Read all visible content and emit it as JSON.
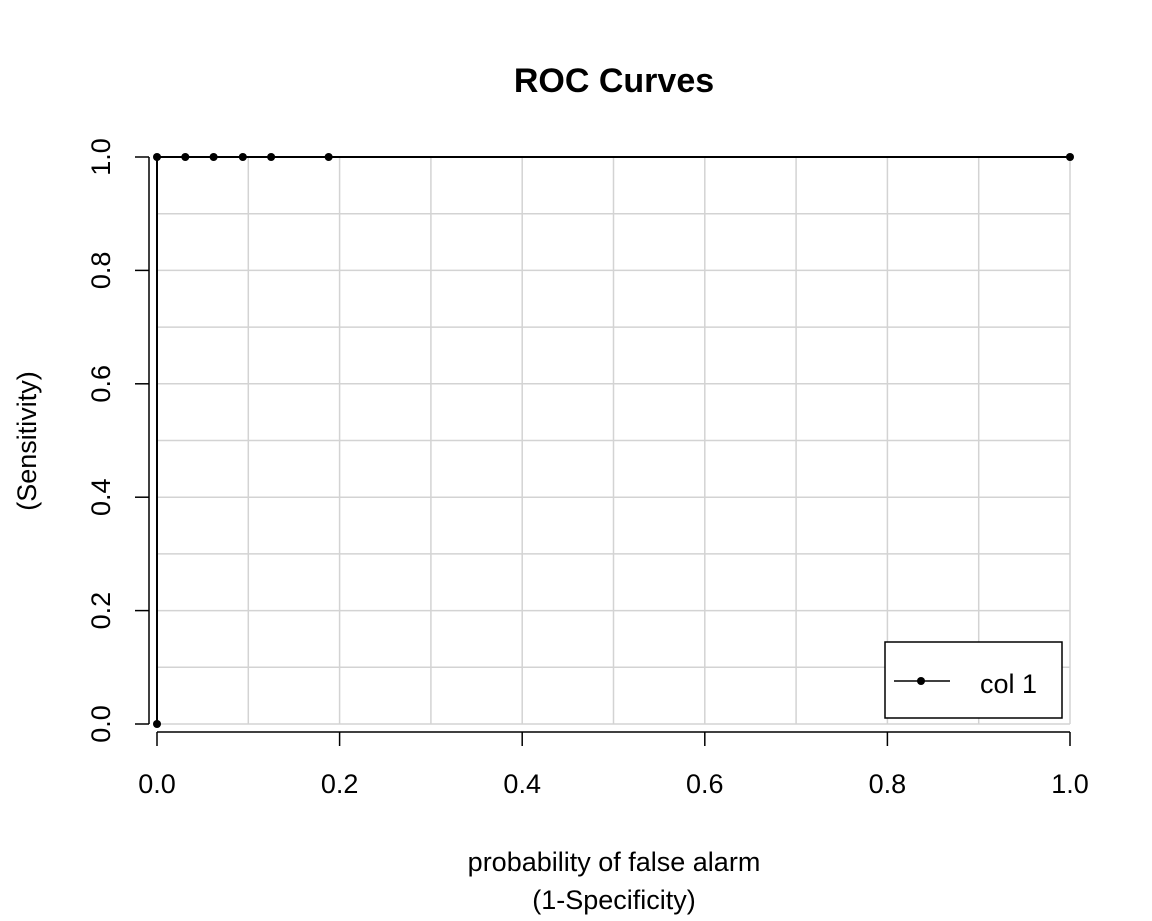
{
  "chart_data": {
    "type": "line",
    "title": "ROC Curves",
    "xlabel": [
      "probability of false alarm",
      "(1-Specificity)"
    ],
    "ylabel": [
      "(Sensitivity)"
    ],
    "xlim": [
      0,
      1
    ],
    "ylim": [
      0,
      1
    ],
    "xticks": [
      0.0,
      0.2,
      0.4,
      0.6,
      0.8,
      1.0
    ],
    "yticks": [
      0.0,
      0.2,
      0.4,
      0.6,
      0.8,
      1.0
    ],
    "xtick_labels": [
      "0.0",
      "0.2",
      "0.4",
      "0.6",
      "0.8",
      "1.0"
    ],
    "ytick_labels": [
      "0.0",
      "0.2",
      "0.4",
      "0.6",
      "0.8",
      "1.0"
    ],
    "grid": true,
    "legend_position": "bottom-right",
    "series": [
      {
        "name": "col 1",
        "color": "#000000",
        "x": [
          0.0,
          0.0,
          0.031,
          0.062,
          0.094,
          0.125,
          0.188,
          1.0
        ],
        "y": [
          0.0,
          1.0,
          1.0,
          1.0,
          1.0,
          1.0,
          1.0,
          1.0
        ]
      }
    ]
  }
}
